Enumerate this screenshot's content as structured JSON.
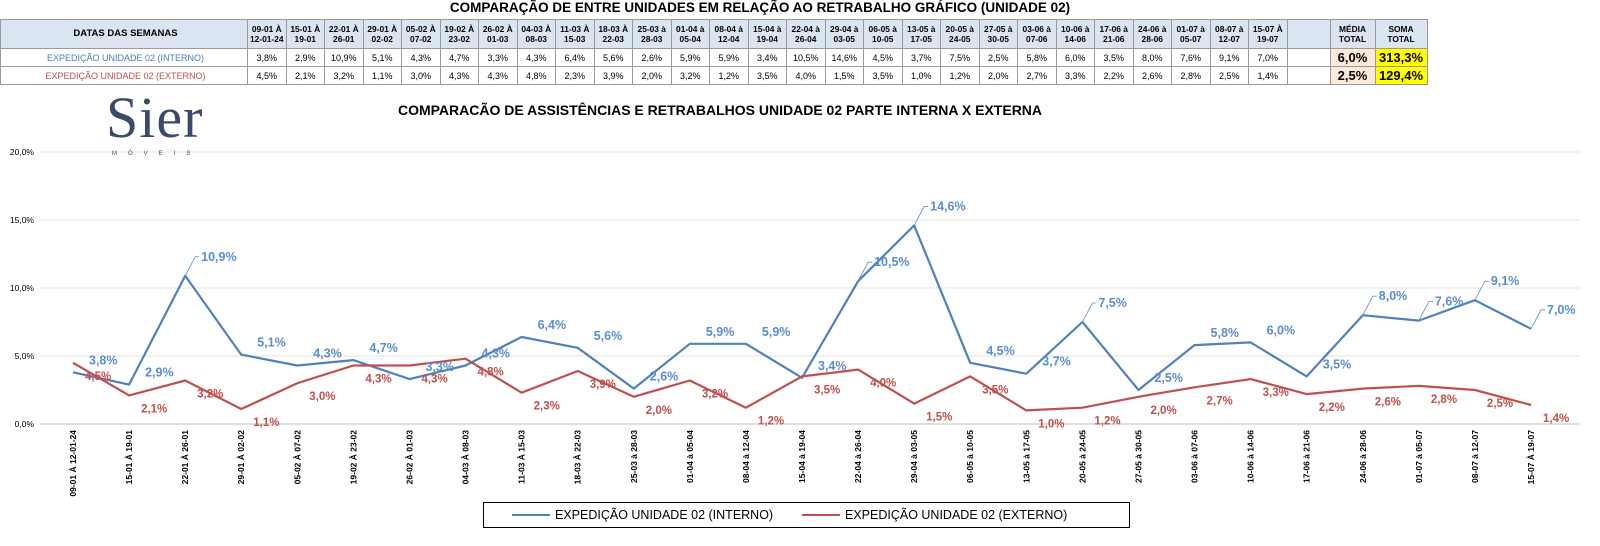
{
  "title": "COMPARAÇÃO DE ENTRE UNIDADES EM RELAÇÃO AO RETRABALHO GRÁFICO (UNIDADE 02)",
  "table": {
    "header_label": "DATAS DAS SEMANAS",
    "weeks": [
      [
        "09-01 À",
        "12-01-24"
      ],
      [
        "15-01 À",
        "19-01"
      ],
      [
        "22-01 À",
        "26-01"
      ],
      [
        "29-01 À",
        "02-02"
      ],
      [
        "05-02 À",
        "07-02"
      ],
      [
        "19-02 À",
        "23-02"
      ],
      [
        "26-02 À",
        "01-03"
      ],
      [
        "04-03 À",
        "08-03"
      ],
      [
        "11-03 À",
        "15-03"
      ],
      [
        "18-03 À",
        "22-03"
      ],
      [
        "25-03 à",
        "28-03"
      ],
      [
        "01-04 à",
        "05-04"
      ],
      [
        "08-04 à",
        "12-04"
      ],
      [
        "15-04 à",
        "19-04"
      ],
      [
        "22-04 à",
        "26-04"
      ],
      [
        "29-04 à",
        "03-05"
      ],
      [
        "06-05 à",
        "10-05"
      ],
      [
        "13-05 à",
        "17-05"
      ],
      [
        "20-05 à",
        "24-05"
      ],
      [
        "27-05 à",
        "30-05"
      ],
      [
        "03-06 à",
        "07-06"
      ],
      [
        "10-06 à",
        "14-06"
      ],
      [
        "17-06 à",
        "21-06"
      ],
      [
        "24-06 à",
        "28-06"
      ],
      [
        "01-07 à",
        "05-07"
      ],
      [
        "08-07 à",
        "12-07"
      ],
      [
        "15-07 À",
        "19-07"
      ]
    ],
    "avg_header": [
      "MÉDIA",
      "TOTAL"
    ],
    "sum_header": [
      "SOMA",
      "TOTAL"
    ],
    "rows": [
      {
        "label": "EXPEDIÇÃO UNIDADE 02 (INTERNO)",
        "values": [
          "3,8%",
          "2,9%",
          "10,9%",
          "5,1%",
          "4,3%",
          "4,7%",
          "3,3%",
          "4,3%",
          "6,4%",
          "5,6%",
          "2,6%",
          "5,9%",
          "5,9%",
          "3,4%",
          "10,5%",
          "14,6%",
          "4,5%",
          "3,7%",
          "7,5%",
          "2,5%",
          "5,8%",
          "6,0%",
          "3,5%",
          "8,0%",
          "7,6%",
          "9,1%",
          "7,0%"
        ],
        "avg": "6,0%",
        "sum": "313,3%"
      },
      {
        "label": "EXPEDIÇÃO UNIDADE 02 (EXTERNO)",
        "values": [
          "4,5%",
          "2,1%",
          "3,2%",
          "1,1%",
          "3,0%",
          "4,3%",
          "4,3%",
          "4,8%",
          "2,3%",
          "3,9%",
          "2,0%",
          "3,2%",
          "1,2%",
          "3,5%",
          "4,0%",
          "1,5%",
          "3,5%",
          "1,0%",
          "1,2%",
          "2,0%",
          "2,7%",
          "3,3%",
          "2,2%",
          "2,6%",
          "2,8%",
          "2,5%",
          "1,4%"
        ],
        "avg": "2,5%",
        "sum": "129,4%"
      }
    ]
  },
  "logo": {
    "text": "Sier",
    "subtext": "MÓVEIS"
  },
  "chart_data": {
    "type": "line",
    "title": "COMPARACÃO DE ASSISTÊNCIAS E RETRABALHOS UNIDADE 02 PARTE INTERNA X EXTERNA",
    "xlabel": "",
    "ylabel": "",
    "ylim": [
      0,
      20
    ],
    "yticks": [
      "0,0%",
      "5,0%",
      "10,0%",
      "15,0%",
      "20,0%"
    ],
    "grid": true,
    "legend_position": "bottom",
    "categories": [
      "09-01 À 12-01-24",
      "15-01 À 19-01",
      "22-01 À 26-01",
      "29-01 À 02-02",
      "05-02 À 07-02",
      "19-02 À 23-02",
      "26-02 À 01-03",
      "04-03 À 08-03",
      "11-03 À 15-03",
      "18-03 À 22-03",
      "25-03 à 28-03",
      "01-04 à 05-04",
      "08-04 à 12-04",
      "15-04 à 19-04",
      "22-04 à 26-04",
      "29-04 à 03-05",
      "06-05 à 10-05",
      "13-05 à 17-05",
      "20-05 à 24-05",
      "27-05 à 30-05",
      "03-06 à 07-06",
      "10-06 à 14-06",
      "17-06 à 21-06",
      "24-06 à 28-06",
      "01-07 à 05-07",
      "08-07 à 12-07",
      "15-07 À 19-07"
    ],
    "series": [
      {
        "name": "EXPEDIÇÃO UNIDADE 02 (INTERNO)",
        "color": "#4f81bd",
        "label_color": "#5b8dd0",
        "values": [
          3.8,
          2.9,
          10.9,
          5.1,
          4.3,
          4.7,
          3.3,
          4.3,
          6.4,
          5.6,
          2.6,
          5.9,
          5.9,
          3.4,
          10.5,
          14.6,
          4.5,
          3.7,
          7.5,
          2.5,
          5.8,
          6.0,
          3.5,
          8.0,
          7.6,
          9.1,
          7.0
        ],
        "labels": [
          "3,8%",
          "2,9%",
          "10,9%",
          "5,1%",
          "4,3%",
          "4,7%",
          "3,3%",
          "4,3%",
          "6,4%",
          "5,6%",
          "2,6%",
          "5,9%",
          "5,9%",
          "3,4%",
          "10,5%",
          "14,6%",
          "4,5%",
          "3,7%",
          "7,5%",
          "2,5%",
          "5,8%",
          "6,0%",
          "3,5%",
          "8,0%",
          "7,6%",
          "9,1%",
          "7,0%"
        ]
      },
      {
        "name": "EXPEDIÇÃO UNIDADE 02 (EXTERNO)",
        "color": "#c0504d",
        "label_color": "#c0504d",
        "values": [
          4.5,
          2.1,
          3.2,
          1.1,
          3.0,
          4.3,
          4.3,
          4.8,
          2.3,
          3.9,
          2.0,
          3.2,
          1.2,
          3.5,
          4.0,
          1.5,
          3.5,
          1.0,
          1.2,
          2.0,
          2.7,
          3.3,
          2.2,
          2.6,
          2.8,
          2.5,
          1.4
        ],
        "labels": [
          "4,5%",
          "2,1%",
          "3,2%",
          "1,1%",
          "3,0%",
          "4,3%",
          "4,3%",
          "4,8%",
          "2,3%",
          "3,9%",
          "2,0%",
          "3,2%",
          "1,2%",
          "3,5%",
          "4,0%",
          "1,5%",
          "3,5%",
          "1,0%",
          "1,2%",
          "2,0%",
          "2,7%",
          "3,3%",
          "2,2%",
          "2,6%",
          "2,8%",
          "2,5%",
          "1,4%"
        ]
      }
    ]
  }
}
